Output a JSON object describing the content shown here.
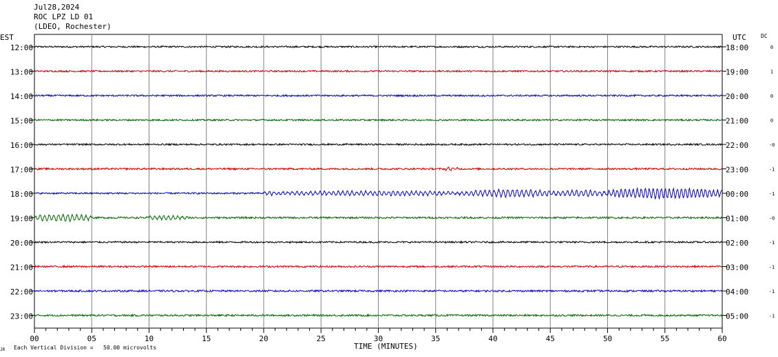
{
  "header": {
    "date": "Jul28,2024",
    "station": "ROC LPZ LD 01",
    "network": "(LDEO, Rochester)"
  },
  "labels": {
    "left_zone": "EST",
    "right_zone": "UTC",
    "dc_header": "DC",
    "xlabel": "TIME (MINUTES)",
    "footer": "Each Vertical Division =   50.00 microvolts",
    "corner_mark": "JR"
  },
  "colors": {
    "cycle": [
      "#000000",
      "#cc0000",
      "#0000cc",
      "#006600"
    ],
    "grid": "#808080",
    "axis": "#000000"
  },
  "chart_data": {
    "type": "line",
    "title": "ROC LPZ LD 01",
    "xlabel": "TIME (MINUTES)",
    "xlim": [
      0,
      60
    ],
    "x_ticks": [
      "00",
      "05",
      "10",
      "15",
      "20",
      "25",
      "30",
      "35",
      "40",
      "45",
      "50",
      "55",
      "60"
    ],
    "x_minor_step": 1,
    "grid_vertical_every": 5,
    "rows": [
      {
        "est": "12:00",
        "utc": "18:00",
        "dc": "0",
        "amp": 1.2,
        "events": []
      },
      {
        "est": "13:00",
        "utc": "19:00",
        "dc": "1",
        "amp": 1.2,
        "events": []
      },
      {
        "est": "14:00",
        "utc": "20:00",
        "dc": "0",
        "amp": 1.2,
        "events": []
      },
      {
        "est": "15:00",
        "utc": "21:00",
        "dc": "0",
        "amp": 1.2,
        "events": []
      },
      {
        "est": "16:00",
        "utc": "22:00",
        "dc": "-0",
        "amp": 1.2,
        "events": []
      },
      {
        "est": "17:00",
        "utc": "23:00",
        "dc": "-1",
        "amp": 1.3,
        "events": [
          {
            "start": 35.8,
            "end": 37,
            "amp": 2.0,
            "period": 0.4
          }
        ]
      },
      {
        "est": "18:00",
        "utc": "00:00",
        "dc": "-1",
        "amp": 1.2,
        "events": [
          {
            "start": 20,
            "end": 21.2,
            "amp": 3.0,
            "period": 0.4
          },
          {
            "start": 21.2,
            "end": 37.8,
            "amp": 3.0,
            "period": 0.4
          },
          {
            "start": 37.8,
            "end": 45,
            "amp": 5.0,
            "period": 0.4
          },
          {
            "start": 45,
            "end": 50,
            "amp": 4.0,
            "period": 0.4
          },
          {
            "start": 50,
            "end": 60,
            "amp": 7.0,
            "period": 0.35
          }
        ]
      },
      {
        "est": "19:00",
        "utc": "01:00",
        "dc": "-0",
        "amp": 1.3,
        "events": [
          {
            "start": 0,
            "end": 5,
            "amp": 4.5,
            "period": 0.4
          },
          {
            "start": 10,
            "end": 13.5,
            "amp": 2.5,
            "period": 0.4
          }
        ]
      },
      {
        "est": "20:00",
        "utc": "02:00",
        "dc": "-1",
        "amp": 1.2,
        "events": []
      },
      {
        "est": "21:00",
        "utc": "03:00",
        "dc": "-1",
        "amp": 1.3,
        "events": []
      },
      {
        "est": "22:00",
        "utc": "04:00",
        "dc": "-1",
        "amp": 1.3,
        "events": []
      },
      {
        "est": "23:00",
        "utc": "05:00",
        "dc": "-1",
        "amp": 1.3,
        "events": []
      }
    ]
  }
}
